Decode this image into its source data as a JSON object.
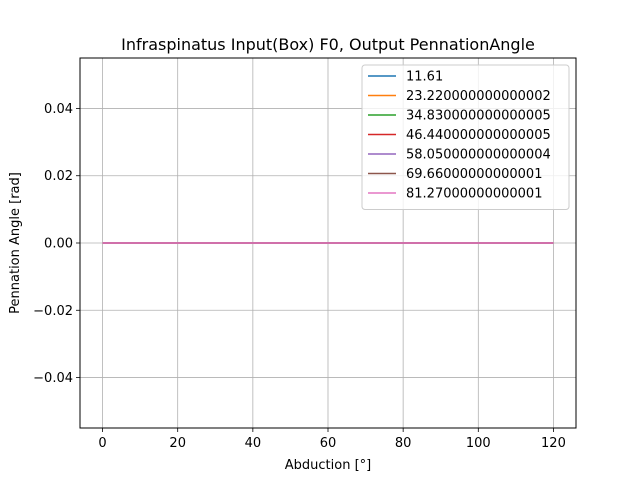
{
  "chart_data": {
    "type": "line",
    "title": "Infraspinatus Input(Box) F0, Output PennationAngle",
    "xlabel": "Abduction [°]",
    "ylabel": "Pennation Angle [rad]",
    "xlim": [
      -6,
      126
    ],
    "ylim": [
      -0.055,
      0.055
    ],
    "xticks": [
      0,
      20,
      40,
      60,
      80,
      100,
      120
    ],
    "xtick_labels": [
      "0",
      "20",
      "40",
      "60",
      "80",
      "100",
      "120"
    ],
    "yticks": [
      -0.04,
      -0.02,
      0.0,
      0.02,
      0.04
    ],
    "ytick_labels": [
      "−0.04",
      "−0.02",
      "0.00",
      "0.02",
      "0.04"
    ],
    "grid": true,
    "legend_position": "top-right",
    "x": [
      0,
      120
    ],
    "series": [
      {
        "name": "11.61",
        "color": "#1f77b4",
        "values": [
          0,
          0
        ]
      },
      {
        "name": "23.220000000000002",
        "color": "#ff7f0e",
        "values": [
          0,
          0
        ]
      },
      {
        "name": "34.830000000000005",
        "color": "#2ca02c",
        "values": [
          0,
          0
        ]
      },
      {
        "name": "46.440000000000005",
        "color": "#d62728",
        "values": [
          0,
          0
        ]
      },
      {
        "name": "58.050000000000004",
        "color": "#9467bd",
        "values": [
          0,
          0
        ]
      },
      {
        "name": "69.66000000000001",
        "color": "#8c564b",
        "values": [
          0,
          0
        ]
      },
      {
        "name": "81.27000000000001",
        "color": "#e377c2",
        "values": [
          0,
          0
        ]
      }
    ]
  }
}
